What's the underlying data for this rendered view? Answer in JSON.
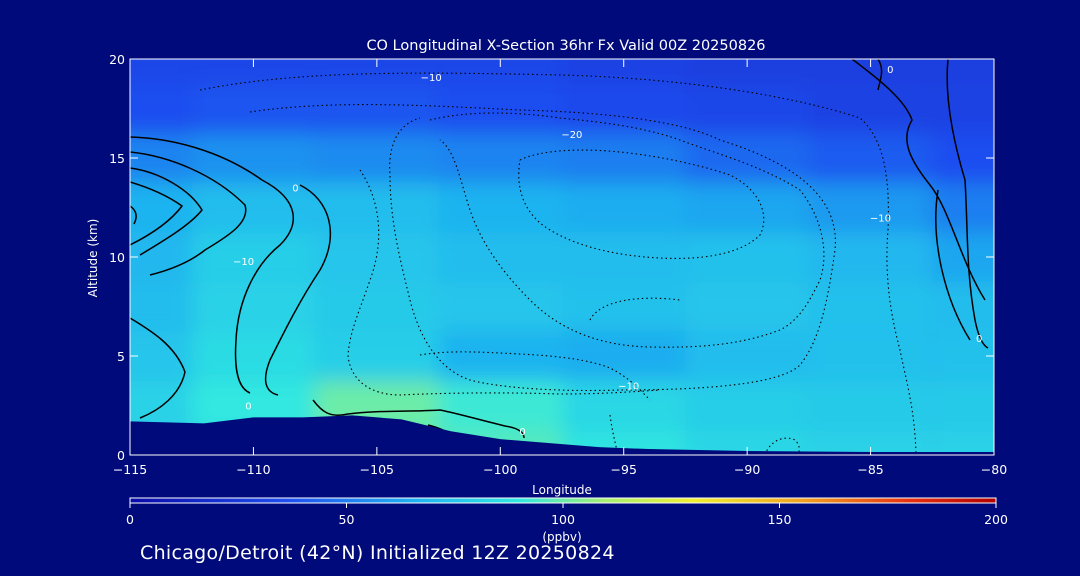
{
  "chart_data": {
    "type": "heatmap",
    "title": "CO Longitudinal X-Section 36hr  Fx Valid 00Z 20250826",
    "xlabel": "Longitude",
    "ylabel": "Altitude (km)",
    "xlim": [
      -115,
      -80
    ],
    "ylim": [
      0,
      20
    ],
    "x_ticks": [
      -115,
      -110,
      -105,
      -100,
      -95,
      -90,
      -85,
      -80
    ],
    "y_ticks": [
      0,
      5,
      10,
      15,
      20
    ],
    "colorbar": {
      "label": "(ppbv)",
      "range": [
        0,
        200
      ],
      "ticks": [
        0,
        50,
        100,
        150,
        200
      ],
      "orientation": "horizontal"
    },
    "contour_labels": [
      {
        "text": "-10",
        "lon": -102.8,
        "alt": 18.9
      },
      {
        "text": "-20",
        "lon": -97.1,
        "alt": 16.0
      },
      {
        "text": "0",
        "lon": -108.3,
        "alt": 13.3
      },
      {
        "text": "-10",
        "lon": -110.4,
        "alt": 9.6
      },
      {
        "text": "-10",
        "lon": -84.6,
        "alt": 11.8
      },
      {
        "text": "0",
        "lon": -84.2,
        "alt": 19.3
      },
      {
        "text": "0",
        "lon": -80.6,
        "alt": 5.7
      },
      {
        "text": "-10",
        "lon": -94.8,
        "alt": 3.3
      },
      {
        "text": "0",
        "lon": -110.2,
        "alt": 2.3
      },
      {
        "text": "0",
        "lon": -99.1,
        "alt": 1.0
      }
    ],
    "field": {
      "lons": [
        -115,
        -110,
        -105,
        -100,
        -95,
        -90,
        -85,
        -80
      ],
      "alts": [
        0,
        2.5,
        5,
        7.5,
        10,
        12.5,
        15,
        17.5,
        20
      ],
      "values_ppbv": [
        [
          78,
          85,
          98,
          96,
          88,
          82,
          80,
          80
        ],
        [
          80,
          90,
          100,
          92,
          82,
          78,
          76,
          76
        ],
        [
          74,
          84,
          78,
          66,
          64,
          70,
          72,
          72
        ],
        [
          70,
          80,
          76,
          74,
          72,
          74,
          72,
          70
        ],
        [
          68,
          78,
          74,
          70,
          70,
          72,
          68,
          62
        ],
        [
          66,
          70,
          70,
          66,
          64,
          62,
          58,
          50
        ],
        [
          52,
          56,
          54,
          52,
          50,
          44,
          40,
          36
        ],
        [
          36,
          38,
          38,
          36,
          34,
          32,
          30,
          30
        ],
        [
          32,
          32,
          32,
          32,
          30,
          28,
          28,
          28
        ]
      ]
    },
    "terrain": {
      "lons": [
        -115,
        -112,
        -110,
        -108,
        -106,
        -104,
        -102,
        -100,
        -98,
        -96,
        -94,
        -90,
        -85,
        -80
      ],
      "alts": [
        1.7,
        1.6,
        1.9,
        1.9,
        2.0,
        1.8,
        1.2,
        0.8,
        0.6,
        0.4,
        0.3,
        0.2,
        0.15,
        0.15
      ]
    }
  },
  "subtitle": "Chicago/Detroit (42°N) Initialized 12Z 20250824"
}
